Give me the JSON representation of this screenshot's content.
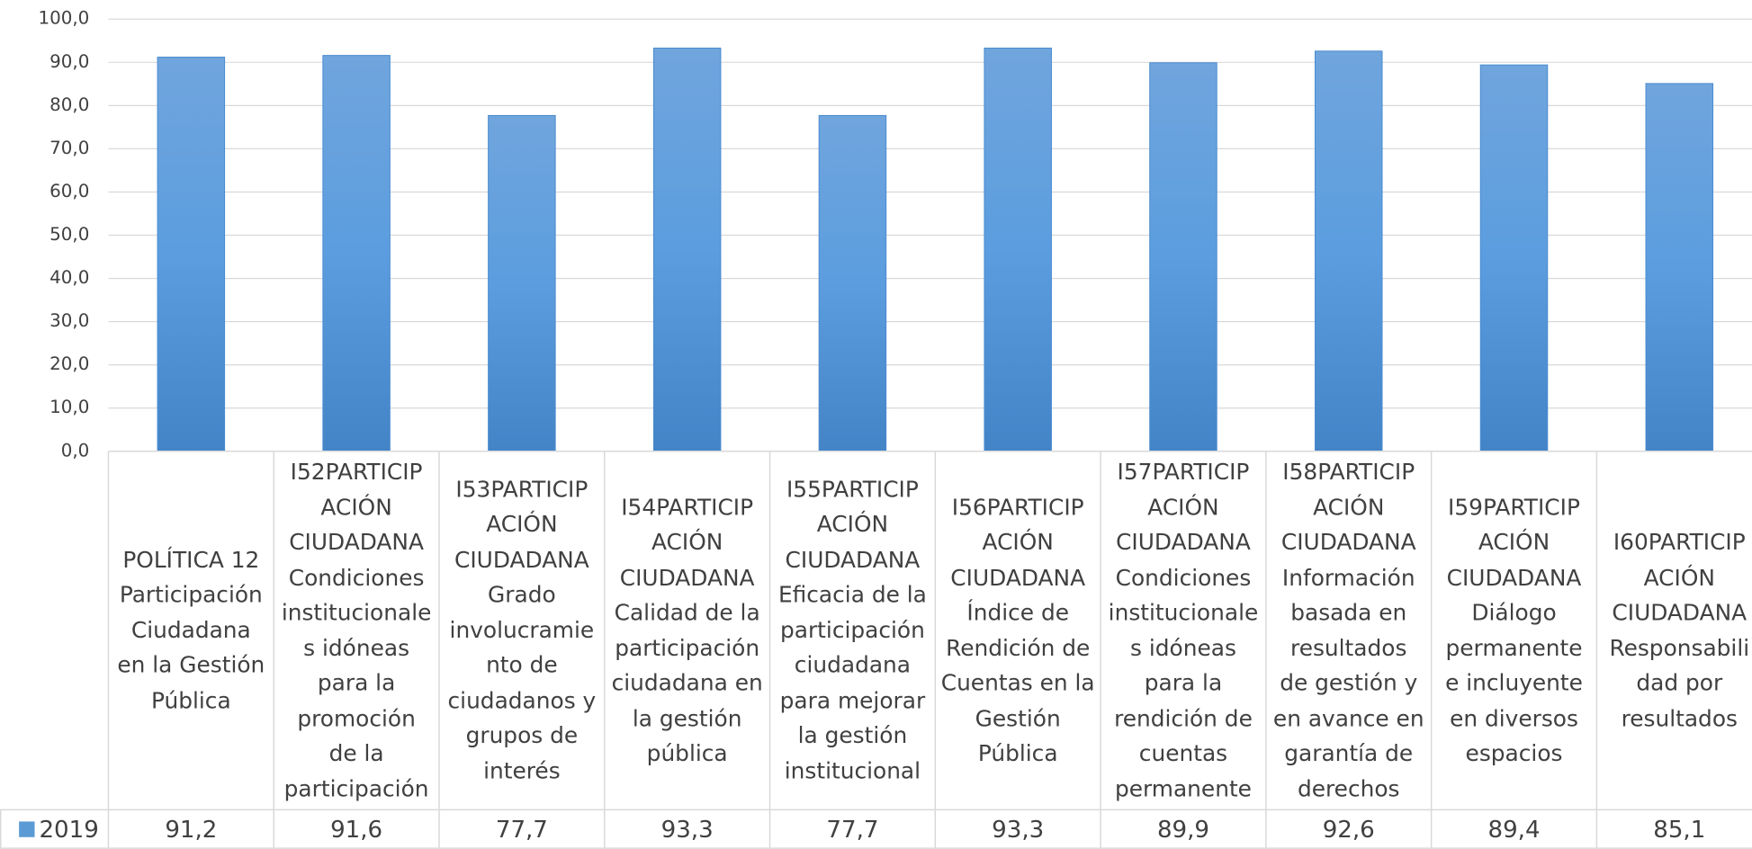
{
  "chart_data": {
    "type": "bar",
    "categories": [
      "POLÍTICA 12\nParticipación\nCiudadana\nen la Gestión\nPública",
      "I52PARTICIP\nACIÓN\nCIUDADANA\nCondiciones\ninstitucionale\ns idóneas\npara la\npromoción\nde la\nparticipación",
      "I53PARTICIP\nACIÓN\nCIUDADANA\nGrado\ninvolucramie\nnto de\nciudadanos y\ngrupos de\ninterés",
      "I54PARTICIP\nACIÓN\nCIUDADANA\nCalidad de la\nparticipación\nciudadana en\nla gestión\npública",
      "I55PARTICIP\nACIÓN\nCIUDADANA\nEficacia de la\nparticipación\nciudadana\npara mejorar\nla gestión\ninstitucional",
      "I56PARTICIP\nACIÓN\nCIUDADANA\nÍndice de\nRendición de\nCuentas en la\nGestión\nPública",
      "I57PARTICIP\nACIÓN\nCIUDADANA\nCondiciones\ninstitucionale\ns idóneas\npara la\nrendición de\ncuentas\npermanente",
      "I58PARTICIP\nACIÓN\nCIUDADANA\nInformación\nbasada en\nresultados\nde gestión y\nen avance en\ngarantía de\nderechos",
      "I59PARTICIP\nACIÓN\nCIUDADANA\nDiálogo\npermanente\ne incluyente\nen diversos\nespacios",
      "I60PARTICIP\nACIÓN\nCIUDADANA\nResponsabili\ndad por\nresultados"
    ],
    "series": [
      {
        "name": "2019",
        "color": "#5b9bd5",
        "values": [
          91.2,
          91.6,
          77.7,
          93.3,
          77.7,
          93.3,
          89.9,
          92.6,
          89.4,
          85.1
        ],
        "value_labels": [
          "91,2",
          "91,6",
          "77,7",
          "93,3",
          "77,7",
          "93,3",
          "89,9",
          "92,6",
          "89,4",
          "85,1"
        ]
      }
    ],
    "ylim": [
      0,
      100
    ],
    "yticks": [
      {
        "value": 0,
        "label": "0,0"
      },
      {
        "value": 10,
        "label": "10,0"
      },
      {
        "value": 20,
        "label": "20,0"
      },
      {
        "value": 30,
        "label": "30,0"
      },
      {
        "value": 40,
        "label": "40,0"
      },
      {
        "value": 50,
        "label": "50,0"
      },
      {
        "value": 60,
        "label": "60,0"
      },
      {
        "value": 70,
        "label": "70,0"
      },
      {
        "value": 80,
        "label": "80,0"
      },
      {
        "value": 90,
        "label": "90,0"
      },
      {
        "value": 100,
        "label": "100,0"
      }
    ],
    "grid": true
  }
}
